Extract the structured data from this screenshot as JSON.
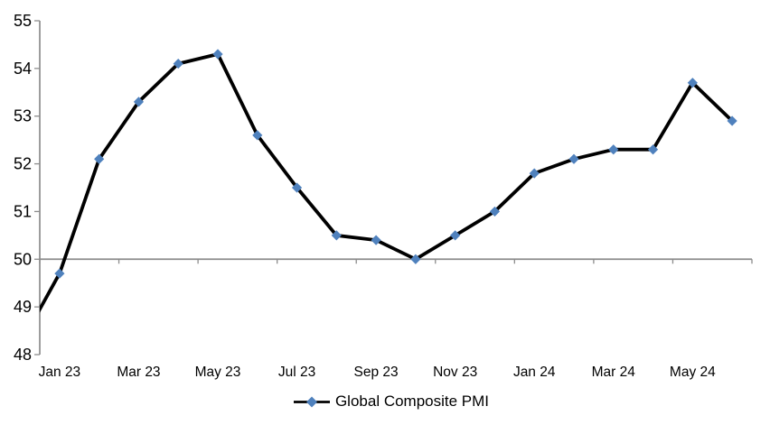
{
  "colors": {
    "background": "#FFFFFF",
    "marker_fill": "#4F81BD",
    "series_line": "#000000",
    "axis_line": "#8C8C8C",
    "label_text": "#000000"
  },
  "chart_data": {
    "type": "line",
    "title": "",
    "x": [
      "Jan 23",
      "Feb 23",
      "Mar 23",
      "Apr 23",
      "May 23",
      "Jun 23",
      "Jul 23",
      "Aug 23",
      "Sep 23",
      "Oct 23",
      "Nov 23",
      "Dec 23",
      "Jan 24",
      "Feb 24",
      "Mar 24",
      "Apr 24",
      "May 24",
      "Jun 24"
    ],
    "series": [
      {
        "name": "Global Composite PMI",
        "marker": "diamond",
        "values": [
          49.7,
          52.1,
          53.3,
          54.1,
          54.3,
          52.6,
          51.5,
          50.5,
          50.4,
          50.0,
          50.5,
          51.0,
          51.8,
          52.1,
          52.3,
          52.3,
          53.7,
          52.9
        ],
        "lead_in_clipped": {
          "value": 48.2,
          "note": "line enters plot from left y-axis at approx 48.9; point itself is outside plot and not marked"
        }
      }
    ],
    "ylim": [
      48,
      55
    ],
    "yticks": [
      48,
      49,
      50,
      51,
      52,
      53,
      54,
      55
    ],
    "xtick_labels_shown": [
      "Jan 23",
      "Mar 23",
      "May 23",
      "Jul 23",
      "Sep 23",
      "Nov 23",
      "Jan 24",
      "Mar 24",
      "May 24"
    ],
    "x_axis_crosses_at": 50,
    "x_axis_tick_every_months": 2,
    "grid": false,
    "legend": {
      "label": "Global Composite PMI",
      "position": "bottom-center"
    }
  }
}
